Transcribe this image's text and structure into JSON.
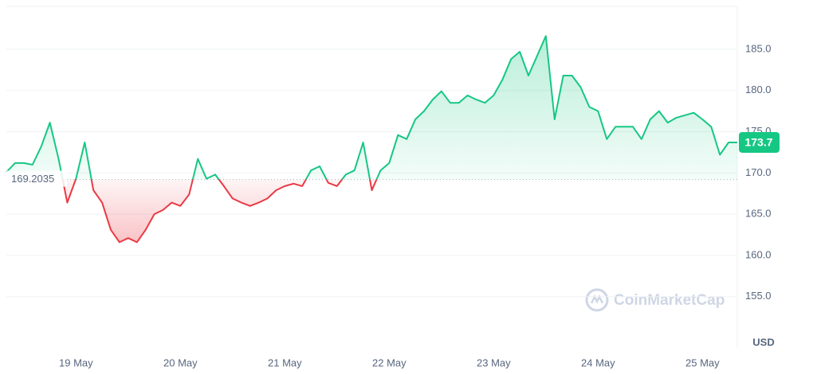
{
  "chart_data": {
    "type": "line",
    "categories": [
      null,
      null,
      null,
      null,
      null,
      null,
      null,
      null,
      "19 May",
      null,
      null,
      null,
      null,
      null,
      null,
      null,
      null,
      null,
      null,
      null,
      "20 May",
      null,
      null,
      null,
      null,
      null,
      null,
      null,
      null,
      null,
      null,
      null,
      "21 May",
      null,
      null,
      null,
      null,
      null,
      null,
      null,
      null,
      null,
      null,
      null,
      "22 May",
      null,
      null,
      null,
      null,
      null,
      null,
      null,
      null,
      null,
      null,
      null,
      "23 May",
      null,
      null,
      null,
      null,
      null,
      null,
      null,
      null,
      null,
      null,
      null,
      "24 May",
      null,
      null,
      null,
      null,
      null,
      null,
      null,
      null,
      null,
      null,
      null,
      "25 May",
      null,
      null,
      null,
      null
    ],
    "series": [
      {
        "color": "#16c784",
        "values": [
          170.1,
          171.2,
          171.2,
          171.0,
          173.2,
          176.1,
          171.7,
          166.4,
          169.3,
          173.7,
          167.9,
          166.4,
          163.1,
          161.6,
          162.1,
          161.6,
          163.1,
          165.0,
          165.5,
          166.4,
          166.0,
          167.4,
          171.7,
          169.3,
          169.8,
          168.4,
          166.9,
          166.4,
          166.0,
          166.4,
          166.9,
          167.9,
          168.4,
          168.7,
          168.4,
          170.3,
          170.8,
          168.8,
          168.4,
          169.8,
          170.3,
          173.7,
          167.9,
          170.3,
          171.2,
          174.6,
          174.1,
          176.5,
          177.5,
          178.9,
          179.9,
          178.5,
          178.5,
          179.4,
          178.9,
          178.5,
          179.4,
          181.3,
          183.8,
          184.7,
          181.8,
          184.2,
          186.6,
          176.5,
          181.8,
          181.8,
          180.4,
          178.0,
          177.5,
          174.1,
          175.6,
          175.6,
          175.6,
          174.1,
          176.5,
          177.5,
          176.1,
          176.7,
          177.0,
          177.3,
          176.5,
          175.6,
          172.2,
          173.7,
          173.7
        ]
      }
    ],
    "below_color": "#ea3943",
    "baseline": 169.2035,
    "ylim": [
      148.8,
      190.2
    ],
    "yticks": [
      {
        "value": 155,
        "label": "155.0"
      },
      {
        "value": 160,
        "label": "160.0"
      },
      {
        "value": 165,
        "label": "165.0"
      },
      {
        "value": 170,
        "label": "170.0"
      },
      {
        "value": 175,
        "label": "175.0"
      },
      {
        "value": 180,
        "label": "180.0"
      },
      {
        "value": 185,
        "label": "185.0"
      }
    ],
    "grid": true,
    "currency": "USD",
    "watermark": "CoinMarketCap"
  }
}
